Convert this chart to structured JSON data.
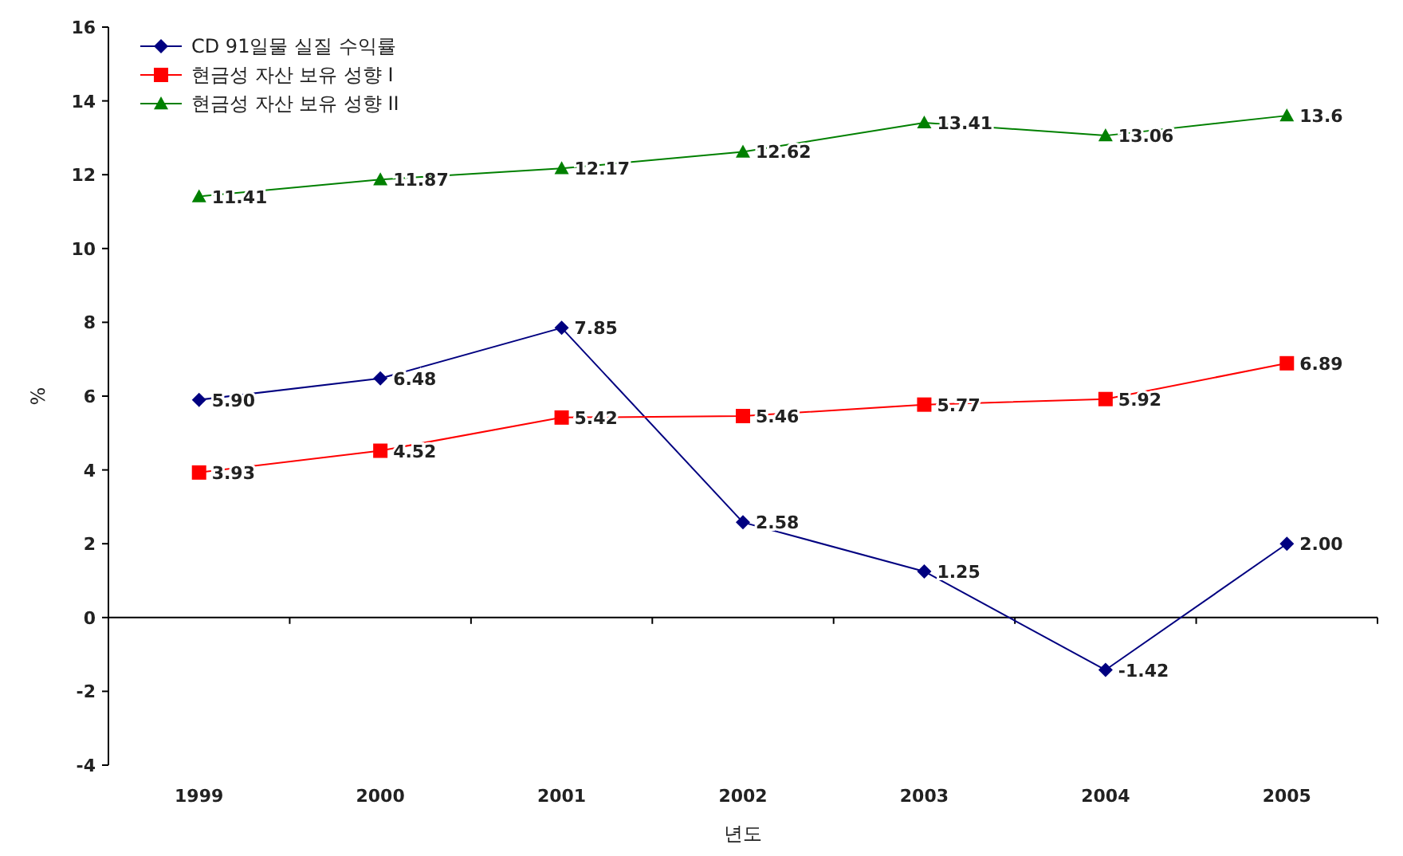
{
  "chart_data": {
    "type": "line",
    "xlabel": "년도",
    "ylabel": "%",
    "categories": [
      "1999",
      "2000",
      "2001",
      "2002",
      "2003",
      "2004",
      "2005"
    ],
    "series": [
      {
        "name": "CD 91일물 실질 수익률",
        "color": "#000080",
        "marker": "diamond",
        "values": [
          5.9,
          6.48,
          7.85,
          2.58,
          1.25,
          -1.42,
          2.0
        ],
        "value_labels": [
          "5.90",
          "6.48",
          "7.85",
          "2.58",
          "1.25",
          "-1.42",
          "2.00"
        ]
      },
      {
        "name": "현금성 자산 보유 성향 I",
        "color": "#ff0000",
        "marker": "square",
        "values": [
          3.93,
          4.52,
          5.42,
          5.46,
          5.77,
          5.92,
          6.89
        ],
        "value_labels": [
          "3.93",
          "4.52",
          "5.42",
          "5.46",
          "5.77",
          "5.92",
          "6.89"
        ]
      },
      {
        "name": "현금성 자산 보유 성향 II",
        "color": "#008000",
        "marker": "triangle",
        "values": [
          11.41,
          11.87,
          12.17,
          12.62,
          13.41,
          13.06,
          13.6
        ],
        "value_labels": [
          "11.41",
          "11.87",
          "12.17",
          "12.62",
          "13.41",
          "13.06",
          "13.6"
        ]
      }
    ],
    "ylim": [
      -4,
      16
    ],
    "yticks": [
      -4,
      -2,
      0,
      2,
      4,
      6,
      8,
      10,
      12,
      14,
      16
    ],
    "legend": "top left",
    "line_style": "solid"
  }
}
